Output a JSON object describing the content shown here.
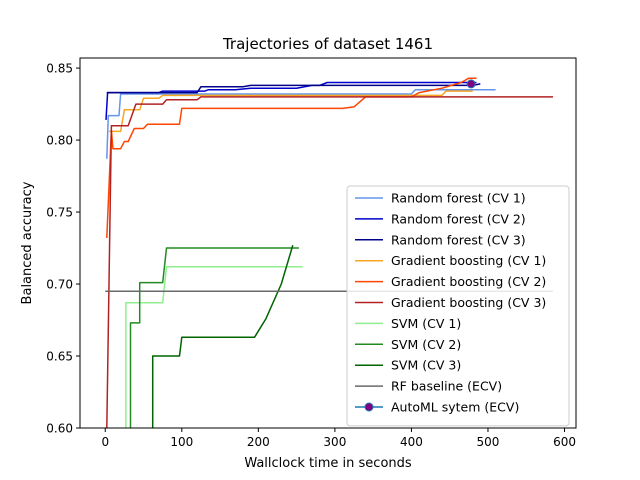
{
  "chart_data": {
    "type": "line",
    "title": "Trajectories of dataset 1461",
    "xlabel": "Wallclock time in seconds",
    "ylabel": "Balanced accuracy",
    "xlim": [
      -33,
      615
    ],
    "ylim": [
      0.6,
      0.857
    ],
    "xticks": [
      0,
      100,
      200,
      300,
      400,
      500,
      600
    ],
    "yticks": [
      0.6,
      0.65,
      0.7,
      0.75,
      0.8,
      0.85
    ],
    "ytick_labels": [
      "0.60",
      "0.65",
      "0.70",
      "0.75",
      "0.80",
      "0.85"
    ],
    "grid": false,
    "legend": "lower-right",
    "series": [
      {
        "name": "Random forest (CV 1)",
        "color": "#6495ed",
        "points": [
          [
            2,
            0.787
          ],
          [
            4,
            0.817
          ],
          [
            18,
            0.817
          ],
          [
            20,
            0.832
          ],
          [
            400,
            0.832
          ],
          [
            405,
            0.835
          ],
          [
            510,
            0.835
          ]
        ]
      },
      {
        "name": "Random forest (CV 2)",
        "color": "#0000cd",
        "points": [
          [
            1,
            0.814
          ],
          [
            3,
            0.833
          ],
          [
            70,
            0.833
          ],
          [
            75,
            0.834
          ],
          [
            130,
            0.834
          ],
          [
            135,
            0.835
          ],
          [
            170,
            0.835
          ],
          [
            190,
            0.836
          ],
          [
            250,
            0.836
          ],
          [
            270,
            0.838
          ],
          [
            280,
            0.838
          ],
          [
            290,
            0.84
          ],
          [
            485,
            0.84
          ]
        ]
      },
      {
        "name": "Random forest (CV 3)",
        "color": "#00008b",
        "points": [
          [
            2,
            0.833
          ],
          [
            120,
            0.833
          ],
          [
            125,
            0.837
          ],
          [
            180,
            0.837
          ],
          [
            190,
            0.838
          ],
          [
            480,
            0.838
          ],
          [
            490,
            0.839
          ]
        ]
      },
      {
        "name": "Gradient boosting (CV 1)",
        "color": "#f5a623",
        "points": [
          [
            5,
            0.806
          ],
          [
            20,
            0.806
          ],
          [
            25,
            0.821
          ],
          [
            45,
            0.821
          ],
          [
            50,
            0.829
          ],
          [
            70,
            0.829
          ],
          [
            75,
            0.831
          ],
          [
            440,
            0.831
          ],
          [
            445,
            0.834
          ],
          [
            480,
            0.834
          ]
        ]
      },
      {
        "name": "Gradient boosting (CV 2)",
        "color": "#ff4500",
        "points": [
          [
            2,
            0.732
          ],
          [
            8,
            0.807
          ],
          [
            10,
            0.794
          ],
          [
            20,
            0.794
          ],
          [
            25,
            0.799
          ],
          [
            30,
            0.799
          ],
          [
            38,
            0.808
          ],
          [
            50,
            0.808
          ],
          [
            55,
            0.811
          ],
          [
            97,
            0.811
          ],
          [
            100,
            0.822
          ],
          [
            310,
            0.822
          ],
          [
            325,
            0.823
          ],
          [
            340,
            0.83
          ],
          [
            400,
            0.83
          ],
          [
            410,
            0.833
          ],
          [
            440,
            0.836
          ],
          [
            465,
            0.84
          ],
          [
            475,
            0.843
          ],
          [
            485,
            0.843
          ]
        ]
      },
      {
        "name": "Gradient boosting (CV 3)",
        "color": "#b22222",
        "points": [
          [
            2,
            0.6
          ],
          [
            8,
            0.81
          ],
          [
            30,
            0.81
          ],
          [
            40,
            0.825
          ],
          [
            75,
            0.825
          ],
          [
            80,
            0.828
          ],
          [
            120,
            0.828
          ],
          [
            125,
            0.83
          ],
          [
            585,
            0.83
          ]
        ]
      },
      {
        "name": "SVM (CV 1)",
        "color": "#90ee90",
        "points": [
          [
            27,
            0.6
          ],
          [
            27,
            0.687
          ],
          [
            75,
            0.687
          ],
          [
            80,
            0.712
          ],
          [
            258,
            0.712
          ]
        ]
      },
      {
        "name": "SVM (CV 2)",
        "color": "#228b22",
        "points": [
          [
            33,
            0.6
          ],
          [
            33,
            0.673
          ],
          [
            45,
            0.673
          ],
          [
            45,
            0.701
          ],
          [
            75,
            0.701
          ],
          [
            80,
            0.725
          ],
          [
            253,
            0.725
          ]
        ]
      },
      {
        "name": "SVM (CV 3)",
        "color": "#006400",
        "points": [
          [
            62,
            0.6
          ],
          [
            62,
            0.65
          ],
          [
            97,
            0.65
          ],
          [
            100,
            0.663
          ],
          [
            195,
            0.663
          ],
          [
            210,
            0.676
          ],
          [
            230,
            0.7
          ],
          [
            245,
            0.727
          ]
        ]
      },
      {
        "name": "RF baseline (ECV)",
        "color": "#696969",
        "points": [
          [
            0,
            0.695
          ],
          [
            585,
            0.695
          ]
        ]
      },
      {
        "name": "AutoML sytem (ECV)",
        "color": "#1f77b4",
        "marker": "#800080",
        "points": [
          [
            478,
            0.839
          ]
        ]
      }
    ]
  }
}
